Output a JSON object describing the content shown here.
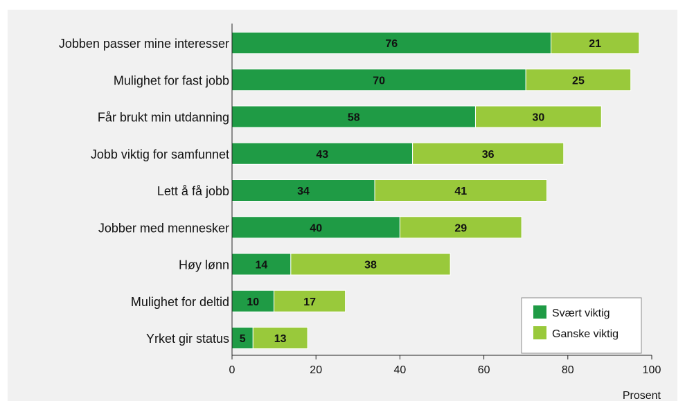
{
  "chart_data": {
    "type": "bar",
    "orientation": "horizontal",
    "stacked": true,
    "categories": [
      "Jobben passer mine interesser",
      "Mulighet for fast jobb",
      "Får brukt min utdanning",
      "Jobb viktig for samfunnet",
      "Lett å få jobb",
      "Jobber med mennesker",
      "Høy lønn",
      "Mulighet for deltid",
      "Yrket gir status"
    ],
    "series": [
      {
        "name": "Svært viktig",
        "values": [
          76,
          70,
          58,
          43,
          34,
          40,
          14,
          10,
          5
        ],
        "color": "#1f9b45"
      },
      {
        "name": "Ganske viktig",
        "values": [
          21,
          25,
          30,
          36,
          41,
          29,
          38,
          17,
          13
        ],
        "color": "#99c93b"
      }
    ],
    "xlim": [
      0,
      100
    ],
    "xticks": [
      "0",
      "20",
      "40",
      "60",
      "80",
      "100"
    ],
    "xlabel": "Prosent",
    "grid": false,
    "legend": {
      "placement": "bottom-right",
      "entries": [
        "Svært viktig",
        "Ganske viktig"
      ]
    }
  }
}
